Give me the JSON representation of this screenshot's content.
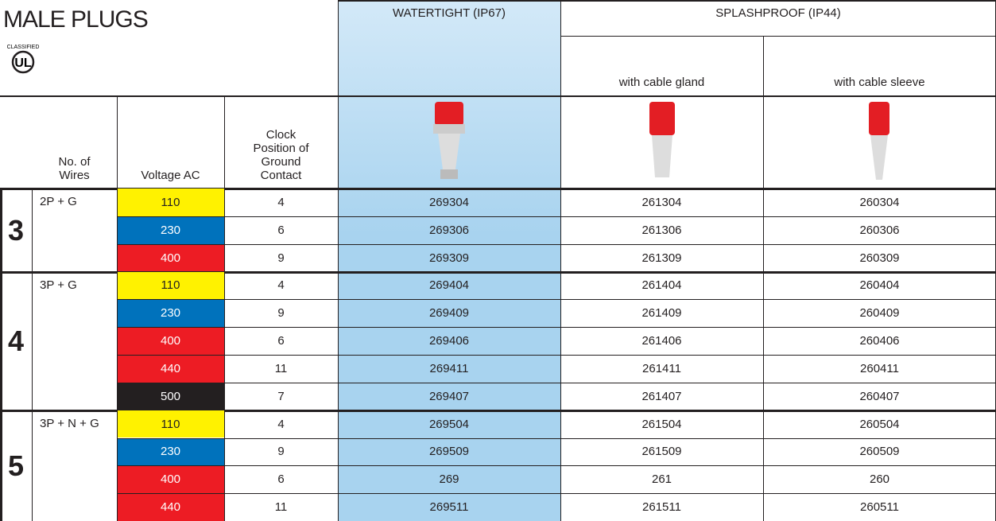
{
  "title": "MALE PLUGS",
  "logo": {
    "top": "CLASSIFIED",
    "mark": "UL"
  },
  "headers": {
    "watertight": "WATERTIGHT (IP67)",
    "splashproof": "SPLASHPROOF (IP44)",
    "gland": "with cable gland",
    "sleeve": "with cable sleeve",
    "wires": "No. of Wires",
    "voltage": "Voltage AC",
    "clock": "Clock Position of Ground Contact"
  },
  "groups": [
    {
      "wires": "3",
      "config": "2P + G",
      "rows": [
        {
          "voltage": "110",
          "color": "#fff200",
          "clock": "4",
          "watertight": "269304",
          "gland": "261304",
          "sleeve": "260304"
        },
        {
          "voltage": "230",
          "color": "#0072bc",
          "clock": "6",
          "watertight": "269306",
          "gland": "261306",
          "sleeve": "260306"
        },
        {
          "voltage": "400",
          "color": "#ed1c24",
          "clock": "9",
          "watertight": "269309",
          "gland": "261309",
          "sleeve": "260309"
        }
      ]
    },
    {
      "wires": "4",
      "config": "3P + G",
      "rows": [
        {
          "voltage": "110",
          "color": "#fff200",
          "clock": "4",
          "watertight": "269404",
          "gland": "261404",
          "sleeve": "260404"
        },
        {
          "voltage": "230",
          "color": "#0072bc",
          "clock": "9",
          "watertight": "269409",
          "gland": "261409",
          "sleeve": "260409"
        },
        {
          "voltage": "400",
          "color": "#ed1c24",
          "clock": "6",
          "watertight": "269406",
          "gland": "261406",
          "sleeve": "260406"
        },
        {
          "voltage": "440",
          "color": "#ed1c24",
          "clock": "11",
          "watertight": "269411",
          "gland": "261411",
          "sleeve": "260411"
        },
        {
          "voltage": "500",
          "color": "#231f20",
          "clock": "7",
          "watertight": "269407",
          "gland": "261407",
          "sleeve": "260407"
        }
      ]
    },
    {
      "wires": "5",
      "config": "3P + N + G",
      "rows": [
        {
          "voltage": "110",
          "color": "#fff200",
          "clock": "4",
          "watertight": "269504",
          "gland": "261504",
          "sleeve": "260504"
        },
        {
          "voltage": "230",
          "color": "#0072bc",
          "clock": "9",
          "watertight": "269509",
          "gland": "261509",
          "sleeve": "260509"
        },
        {
          "voltage": "400",
          "color": "#ed1c24",
          "clock": "6",
          "watertight": "269",
          "gland": "261",
          "sleeve": "260"
        },
        {
          "voltage": "440",
          "color": "#ed1c24",
          "clock": "11",
          "watertight": "269511",
          "gland": "261511",
          "sleeve": "260511"
        }
      ]
    }
  ]
}
